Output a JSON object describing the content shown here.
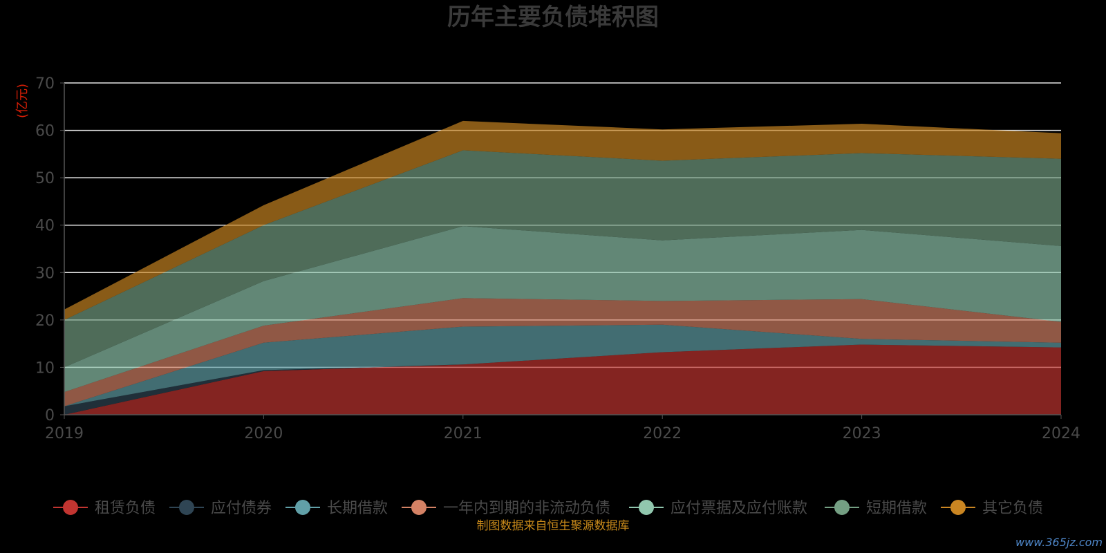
{
  "chart_data": {
    "type": "area",
    "stacked": true,
    "title": "历年主要负债堆积图",
    "unit_label": "(亿元)",
    "x": [
      "2019",
      "2020",
      "2021",
      "2022",
      "2023",
      "2024"
    ],
    "ylim": [
      0,
      70
    ],
    "yticks": [
      0,
      10,
      20,
      30,
      40,
      50,
      60,
      70
    ],
    "grid": true,
    "legend_position": "bottom",
    "series": [
      {
        "name": "租赁负债",
        "color": "#c23531",
        "values": [
          0.0,
          9.2,
          10.6,
          13.2,
          14.8,
          14.2
        ]
      },
      {
        "name": "应付债券",
        "color": "#2f4554",
        "values": [
          1.8,
          0.2,
          0.0,
          0.0,
          0.0,
          0.0
        ]
      },
      {
        "name": "长期借款",
        "color": "#61a0a8",
        "values": [
          0.0,
          5.8,
          8.0,
          5.8,
          1.2,
          1.0
        ]
      },
      {
        "name": "一年内到期的非流动负债",
        "color": "#d48265",
        "values": [
          3.0,
          3.6,
          6.0,
          5.0,
          8.4,
          4.4
        ]
      },
      {
        "name": "应付票据及应付账款",
        "color": "#91c7ae",
        "values": [
          5.2,
          9.4,
          15.2,
          12.8,
          14.6,
          16.0
        ]
      },
      {
        "name": "短期借款",
        "color": "#749f83",
        "values": [
          10.0,
          11.8,
          16.0,
          16.8,
          16.2,
          18.4
        ]
      },
      {
        "name": "其它负债",
        "color": "#ca8622",
        "values": [
          2.2,
          4.2,
          6.2,
          6.6,
          6.2,
          5.4
        ]
      }
    ]
  },
  "footer": {
    "source": "制图数据来自恒生聚源数据库",
    "watermark": "www.365jz.com"
  }
}
